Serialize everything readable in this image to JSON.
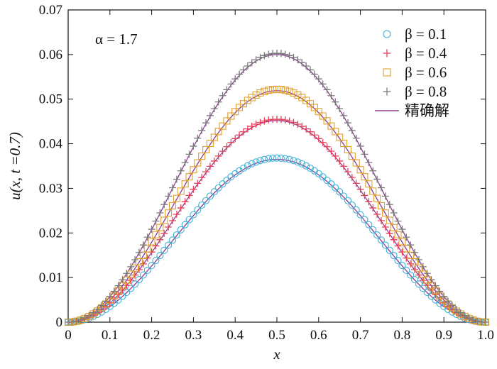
{
  "chart_data": {
    "type": "scatter",
    "annotation": "α = 1.7",
    "xlabel": "x",
    "ylabel": "u(x, t =0.7)",
    "xlim": [
      0,
      1
    ],
    "ylim": [
      0,
      0.07
    ],
    "xticks": [
      0,
      0.1,
      0.2,
      0.3,
      0.4,
      0.5,
      0.6,
      0.7,
      0.8,
      0.9,
      1.0
    ],
    "xtick_labels": [
      "0",
      "0.1",
      "0.2",
      "0.3",
      "0.4",
      "0.5",
      "0.6",
      "0.7",
      "0.8",
      "0.9",
      "1.0"
    ],
    "yticks": [
      0,
      0.01,
      0.02,
      0.03,
      0.04,
      0.05,
      0.06,
      0.07
    ],
    "ytick_labels": [
      "0",
      "0.01",
      "0.02",
      "0.03",
      "0.04",
      "0.05",
      "0.06",
      "0.07"
    ],
    "grid": false,
    "legend_position": "top-right",
    "series": [
      {
        "name": "β = 0.1",
        "marker": "circle",
        "color": "#3bb0d9",
        "peak": 0.0368,
        "exact_peak": 0.0365
      },
      {
        "name": "β = 0.4",
        "marker": "plus",
        "color": "#e8405a",
        "peak": 0.0455,
        "exact_peak": 0.0452
      },
      {
        "name": "β = 0.6",
        "marker": "square",
        "color": "#e0a030",
        "peak": 0.0522,
        "exact_peak": 0.0519
      },
      {
        "name": "β = 0.8",
        "marker": "plus",
        "color": "#7a7a7a",
        "peak": 0.0603,
        "exact_peak": 0.06
      }
    ],
    "exact": {
      "name": "精确解",
      "color": "#8b3d8f"
    },
    "profile": {
      "formula": "peak * sin^2(pi * x)",
      "x_points": [
        0,
        0.01,
        0.02,
        0.03,
        0.04,
        0.05,
        0.06,
        0.07,
        0.08,
        0.09,
        0.1,
        0.11,
        0.12,
        0.13,
        0.14,
        0.15,
        0.16,
        0.17,
        0.18,
        0.19,
        0.2,
        0.21,
        0.22,
        0.23,
        0.24,
        0.25,
        0.26,
        0.27,
        0.28,
        0.29,
        0.3,
        0.31,
        0.32,
        0.33,
        0.34,
        0.35,
        0.36,
        0.37,
        0.38,
        0.39,
        0.4,
        0.41,
        0.42,
        0.43,
        0.44,
        0.45,
        0.46,
        0.47,
        0.48,
        0.49,
        0.5,
        0.51,
        0.52,
        0.53,
        0.54,
        0.55,
        0.56,
        0.57,
        0.58,
        0.59,
        0.6,
        0.61,
        0.62,
        0.63,
        0.64,
        0.65,
        0.66,
        0.67,
        0.68,
        0.69,
        0.7,
        0.71,
        0.72,
        0.73,
        0.74,
        0.75,
        0.76,
        0.77,
        0.78,
        0.79,
        0.8,
        0.81,
        0.82,
        0.83,
        0.84,
        0.85,
        0.86,
        0.87,
        0.88,
        0.89,
        0.9,
        0.91,
        0.92,
        0.93,
        0.94,
        0.95,
        0.96,
        0.97,
        0.98,
        0.99,
        1.0
      ]
    }
  }
}
